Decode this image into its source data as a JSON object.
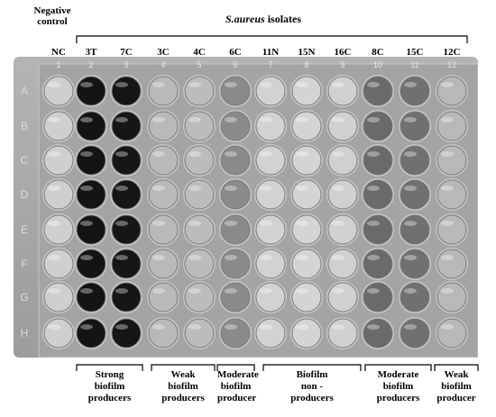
{
  "header": {
    "negative_control_line1": "Negative",
    "negative_control_line2": "control",
    "title_species": "S.aureus",
    "title_suffix": " isolates"
  },
  "columns": {
    "labels": [
      "NC",
      "3T",
      "7C",
      "3C",
      "4C",
      "6C",
      "11N",
      "15N",
      "16C",
      "8C",
      "15C",
      "12C"
    ]
  },
  "plate": {
    "column_numbers": [
      "1",
      "2",
      "3",
      "4",
      "5",
      "6",
      "7",
      "8",
      "9",
      "10",
      "11",
      "12"
    ],
    "row_letters": [
      "A",
      "B",
      "C",
      "D",
      "E",
      "F",
      "G",
      "H"
    ]
  },
  "groups": [
    {
      "line1": "Strong",
      "line2": "biofilm",
      "line3": "producers"
    },
    {
      "line1": "Weak",
      "line2": "biofilm",
      "line3": "producers"
    },
    {
      "line1": "Moderate",
      "line2": "biofilm",
      "line3": "producer"
    },
    {
      "line1": "Biofilm",
      "line2": "non -",
      "line3": "producers"
    },
    {
      "line1": "Moderate",
      "line2": "biofilm",
      "line3": "producers"
    },
    {
      "line1": "Weak",
      "line2": "biofilm",
      "line3": "producer"
    }
  ]
}
